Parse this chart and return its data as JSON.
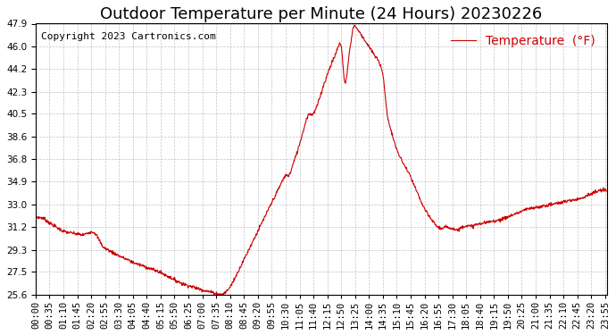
{
  "title": "Outdoor Temperature per Minute (24 Hours) 20230226",
  "copyright_text": "Copyright 2023 Cartronics.com",
  "legend_label": "Temperature  (°F)",
  "line_color": "#cc0000",
  "background_color": "#ffffff",
  "grid_color": "#aaaaaa",
  "ylim": [
    25.6,
    47.9
  ],
  "yticks": [
    25.6,
    27.5,
    29.3,
    31.2,
    33.0,
    34.9,
    36.8,
    38.6,
    40.5,
    42.3,
    44.2,
    46.0,
    47.9
  ],
  "x_tick_interval": 35,
  "total_minutes": 1440,
  "title_fontsize": 13,
  "axis_fontsize": 7.5,
  "copyright_fontsize": 8,
  "legend_fontsize": 10,
  "keypoints_x": [
    0,
    20,
    35,
    70,
    120,
    140,
    150,
    170,
    210,
    250,
    310,
    370,
    420,
    455,
    467,
    475,
    485,
    495,
    510,
    525,
    540,
    555,
    570,
    585,
    600,
    615,
    625,
    632,
    638,
    644,
    650,
    658,
    665,
    672,
    678,
    684,
    690,
    696,
    703,
    710,
    718,
    725,
    733,
    740,
    748,
    755,
    760,
    765,
    770,
    773,
    776,
    779,
    782,
    787,
    791,
    796,
    800,
    806,
    812,
    818,
    825,
    832,
    840,
    848,
    856,
    865,
    875,
    885,
    892,
    900,
    910,
    920,
    930,
    942,
    955,
    968,
    982,
    997,
    1012,
    1025,
    1035,
    1045,
    1055,
    1065,
    1075,
    1085,
    1095,
    1105,
    1115,
    1130,
    1145,
    1160,
    1175,
    1190,
    1205,
    1220,
    1235,
    1250,
    1265,
    1280,
    1295,
    1310,
    1325,
    1340,
    1355,
    1370,
    1385,
    1400,
    1415,
    1430,
    1439
  ],
  "keypoints_y": [
    32.0,
    31.9,
    31.5,
    30.8,
    30.5,
    30.8,
    30.7,
    29.5,
    28.8,
    28.2,
    27.5,
    26.5,
    26.0,
    25.7,
    25.6,
    25.7,
    26.0,
    26.5,
    27.5,
    28.5,
    29.5,
    30.5,
    31.5,
    32.5,
    33.5,
    34.5,
    35.2,
    35.5,
    35.3,
    35.8,
    36.5,
    37.2,
    38.0,
    38.8,
    39.5,
    40.3,
    40.5,
    40.4,
    40.6,
    41.2,
    42.0,
    42.8,
    43.5,
    44.2,
    44.8,
    45.3,
    45.8,
    46.2,
    46.5,
    45.5,
    43.5,
    42.5,
    43.0,
    44.5,
    45.8,
    46.5,
    47.9,
    47.7,
    47.4,
    47.1,
    46.8,
    46.4,
    46.0,
    45.6,
    45.2,
    44.8,
    44.0,
    40.5,
    39.5,
    38.6,
    37.5,
    36.8,
    36.2,
    35.5,
    34.5,
    33.5,
    32.5,
    31.8,
    31.2,
    31.0,
    31.2,
    31.1,
    31.0,
    30.9,
    31.2,
    31.3,
    31.2,
    31.3,
    31.4,
    31.5,
    31.6,
    31.7,
    31.8,
    32.0,
    32.2,
    32.4,
    32.6,
    32.7,
    32.8,
    32.9,
    33.0,
    33.1,
    33.2,
    33.3,
    33.4,
    33.5,
    33.7,
    33.9,
    34.1,
    34.2,
    34.2
  ]
}
